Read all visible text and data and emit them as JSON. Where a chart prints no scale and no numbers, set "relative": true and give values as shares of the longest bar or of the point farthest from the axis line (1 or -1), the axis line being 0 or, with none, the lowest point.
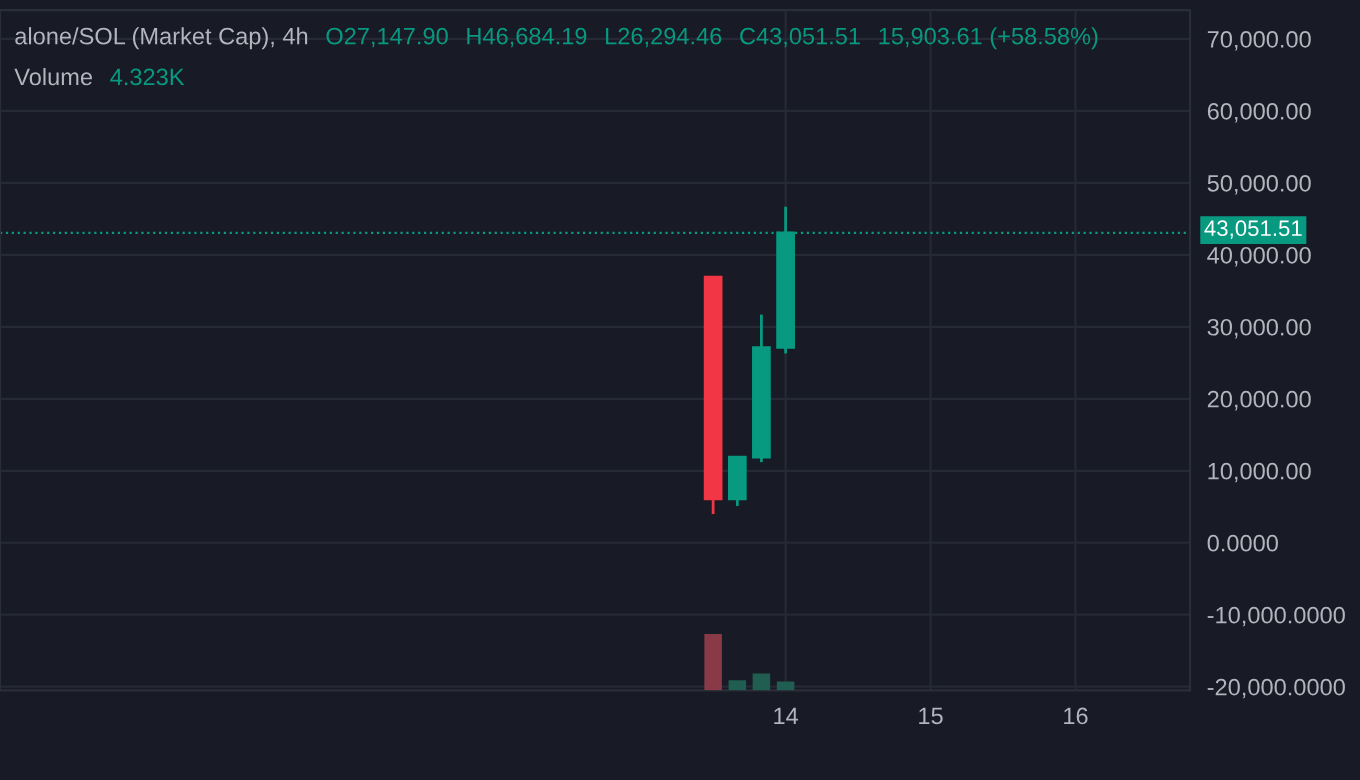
{
  "chart_data": [
    {
      "type": "candlestick",
      "title": "alone/SOL (Market Cap), 4h",
      "subtitle": "Volume",
      "annotations": [
        "O27,147.90",
        "H46,684.19",
        "L26,294.46",
        "C43,051.51",
        "15,903.61 (+58.58%)",
        "4.323K"
      ],
      "x": [
        13.5,
        13.667,
        13.833,
        14.0
      ],
      "ohlc": [
        [
          36900,
          36900,
          4000,
          6100
        ],
        [
          6100,
          11900,
          5100,
          11900
        ],
        [
          11900,
          31700,
          11200,
          27100
        ],
        [
          27147.9,
          46684.19,
          26294.46,
          43051.51
        ]
      ],
      "colors": [
        "#f23645",
        "#089981",
        "#089981",
        "#089981"
      ],
      "xlim": [
        8.58,
        16.79
      ],
      "xticks": [
        14,
        15,
        16
      ],
      "ylim": [
        -20500,
        74000
      ],
      "yticks": [
        {
          "value": 70000,
          "label": "70,000.00"
        },
        {
          "value": 60000,
          "label": "60,000.00"
        },
        {
          "value": 50000,
          "label": "50,000.00"
        },
        {
          "value": 40000,
          "label": "40,000.00"
        },
        {
          "value": 30000,
          "label": "30,000.00"
        },
        {
          "value": 20000,
          "label": "20,000.00"
        },
        {
          "value": 10000,
          "label": "10,000.00"
        },
        {
          "value": 0,
          "label": "0.0000"
        },
        {
          "value": -10000,
          "label": "-10,000.0000"
        },
        {
          "value": -20000,
          "label": "-20,000.0000"
        }
      ],
      "ref_lines": [
        {
          "axis": "y",
          "value": 43051.51,
          "label": "43,051.51",
          "color": "#089981",
          "line_style": "dotted"
        }
      ],
      "grid": true
    },
    {
      "type": "bar",
      "relative": true,
      "categories": [
        null,
        null,
        null,
        null
      ],
      "values": [
        1,
        0.18,
        0.3,
        0.155
      ],
      "colors": [
        "#8a3a47",
        "#1f5e50",
        "#1f5e50",
        "#1f5e50"
      ]
    }
  ]
}
